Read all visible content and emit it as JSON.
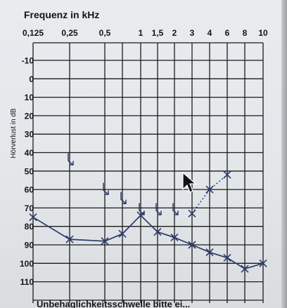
{
  "chart_data": {
    "type": "line",
    "title": "Frequenz in kHz",
    "ylabel": "Hörverlust in dB",
    "x_tick_labels": [
      "0,125",
      "0,25",
      "0,5",
      "1",
      "1,5",
      "2",
      "3",
      "4",
      "6",
      "8",
      "10"
    ],
    "x_extra_grid": [
      "0,75"
    ],
    "y_tick_labels": [
      -10,
      0,
      10,
      20,
      30,
      40,
      50,
      60,
      70,
      80,
      90,
      100,
      110
    ],
    "ylim": [
      -20,
      120
    ],
    "y_inverted": true,
    "grid": true,
    "series": [
      {
        "marker": "x",
        "line": "solid",
        "x": [
          "0,125",
          "0,25",
          "0,5",
          "0,75",
          "1",
          "1,5",
          "2",
          "3",
          "4",
          "6",
          "8",
          "10"
        ],
        "y": [
          75,
          87,
          88,
          84,
          74,
          83,
          86,
          90,
          94,
          97,
          103,
          100
        ]
      },
      {
        "marker": "x",
        "line": "dotted",
        "x": [
          "3",
          "4",
          "6"
        ],
        "y": [
          73,
          60,
          52
        ]
      },
      {
        "marker": "arrow",
        "line": "none",
        "x": [
          "0,25",
          "0,5",
          "0,75",
          "1",
          "1,5",
          "2"
        ],
        "y": [
          44,
          60,
          65,
          71,
          71,
          71
        ]
      }
    ],
    "footer_text": "Unbehaglichkeitsschwelle bitte ei..."
  }
}
